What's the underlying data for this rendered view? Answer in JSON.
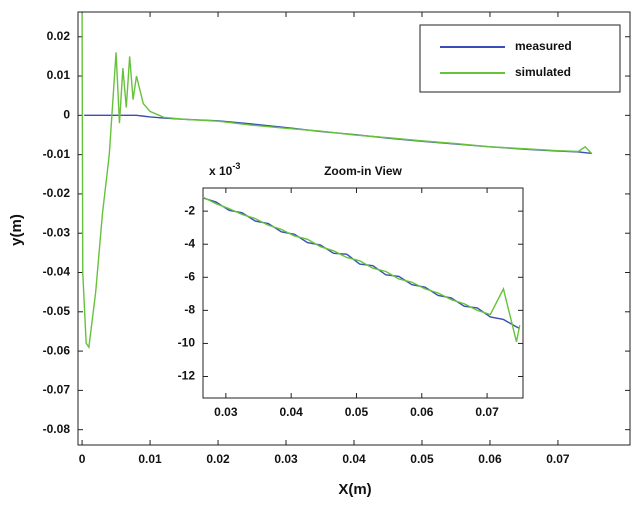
{
  "chart_data": [
    {
      "type": "line",
      "xlabel": "X(m)",
      "ylabel": "y(m)",
      "legend": "upper right",
      "xlim": [
        -0.0006,
        0.0806
      ],
      "ylim": [
        -0.0839,
        0.0263
      ],
      "xticks": [
        0,
        0.01,
        0.02,
        0.03,
        0.04,
        0.05,
        0.06,
        0.07
      ],
      "yticks": [
        0.02,
        0.01,
        0,
        -0.01,
        -0.02,
        -0.03,
        -0.04,
        -0.05,
        -0.06,
        -0.07,
        -0.08
      ],
      "series": [
        {
          "name": "measured",
          "color": "#3a4fb5",
          "x": [
            0.0003,
            0.0006,
            0.001,
            0.002,
            0.003,
            0.004,
            0.005,
            0.0055,
            0.006,
            0.0065,
            0.007,
            0.0075,
            0.008,
            0.009,
            0.01,
            0.012,
            0.015,
            0.02,
            0.025,
            0.03,
            0.035,
            0.04,
            0.045,
            0.05,
            0.055,
            0.06,
            0.065,
            0.07,
            0.073,
            0.074,
            0.075
          ],
          "values": [
            0,
            0,
            0,
            0,
            0,
            0,
            0,
            0,
            0,
            0,
            0,
            0,
            0,
            -0.0002,
            -0.0004,
            -0.0007,
            -0.001,
            -0.0014,
            -0.0022,
            -0.0031,
            -0.0041,
            -0.0049,
            -0.0058,
            -0.0066,
            -0.0073,
            -0.008,
            -0.0086,
            -0.0091,
            -0.0093,
            -0.0095,
            -0.0097
          ]
        },
        {
          "name": "simulated",
          "color": "#66c23a",
          "x": [
            0,
            0.0001,
            0.0006,
            0.001,
            0.002,
            0.003,
            0.004,
            0.005,
            0.0055,
            0.006,
            0.0065,
            0.007,
            0.0075,
            0.008,
            0.009,
            0.01,
            0.012,
            0.015,
            0.02,
            0.025,
            0.03,
            0.035,
            0.04,
            0.045,
            0.05,
            0.055,
            0.06,
            0.065,
            0.07,
            0.073,
            0.074,
            0.075
          ],
          "values": [
            0.026,
            -0.04,
            -0.058,
            -0.059,
            -0.045,
            -0.025,
            -0.01,
            0.016,
            -0.002,
            0.012,
            0.002,
            0.015,
            0.004,
            0.01,
            0.003,
            0.001,
            -0.0005,
            -0.001,
            -0.0015,
            -0.0025,
            -0.0033,
            -0.004,
            -0.005,
            -0.0057,
            -0.0065,
            -0.0072,
            -0.008,
            -0.0085,
            -0.009,
            -0.0092,
            -0.008,
            -0.0098
          ]
        }
      ]
    },
    {
      "type": "line",
      "title": "Zoom-in View",
      "scale_label": "x 10",
      "scale_exponent": "-3",
      "xlim": [
        0.0265,
        0.0755
      ],
      "ylim": [
        -13.3,
        -0.6
      ],
      "xticks": [
        0.03,
        0.04,
        0.05,
        0.06,
        0.07
      ],
      "yticks": [
        -2,
        -4,
        -6,
        -8,
        -10,
        -12
      ],
      "series": [
        {
          "color": "#3a4fb5",
          "x": [
            0.0265,
            0.0285,
            0.0305,
            0.0325,
            0.0345,
            0.0365,
            0.0385,
            0.0405,
            0.0425,
            0.0445,
            0.0465,
            0.0485,
            0.0505,
            0.0525,
            0.0545,
            0.0565,
            0.0585,
            0.0605,
            0.0625,
            0.0645,
            0.0665,
            0.0685,
            0.0705,
            0.0725,
            0.0745,
            0.075
          ],
          "values": [
            -1.2,
            -1.45,
            -1.95,
            -2.1,
            -2.6,
            -2.75,
            -3.25,
            -3.4,
            -3.9,
            -4.05,
            -4.55,
            -4.6,
            -5.2,
            -5.3,
            -5.85,
            -5.95,
            -6.45,
            -6.6,
            -7.1,
            -7.25,
            -7.75,
            -7.85,
            -8.4,
            -8.55,
            -9.0,
            -9.1
          ]
        },
        {
          "color": "#66c23a",
          "x": [
            0.0265,
            0.0285,
            0.0305,
            0.0325,
            0.0345,
            0.0365,
            0.0385,
            0.0405,
            0.0425,
            0.0445,
            0.0465,
            0.0485,
            0.0505,
            0.0525,
            0.0545,
            0.0565,
            0.0585,
            0.0605,
            0.0625,
            0.0645,
            0.0665,
            0.0685,
            0.0705,
            0.0725,
            0.0745,
            0.075
          ],
          "values": [
            -1.15,
            -1.55,
            -1.85,
            -2.2,
            -2.45,
            -2.85,
            -3.1,
            -3.5,
            -3.7,
            -4.15,
            -4.4,
            -4.8,
            -5.0,
            -5.45,
            -5.65,
            -6.1,
            -6.3,
            -6.7,
            -6.95,
            -7.35,
            -7.6,
            -8.0,
            -8.25,
            -6.7,
            -9.9,
            -8.9
          ]
        }
      ]
    }
  ]
}
